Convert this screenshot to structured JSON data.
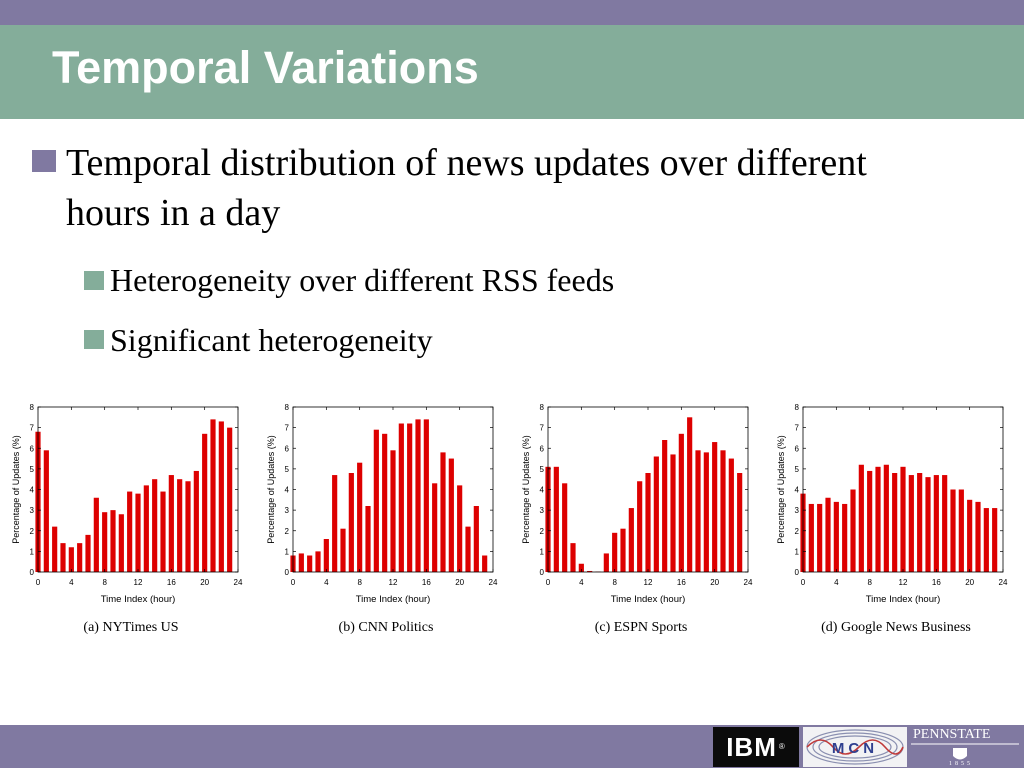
{
  "slide": {
    "title": "Temporal Variations",
    "bullet_main": "Temporal distribution of news updates over different hours in a day",
    "sub_bullets": [
      "Heterogeneity over different RSS feeds",
      "Significant heterogeneity"
    ]
  },
  "colors": {
    "top_band": "#8079a1",
    "title_bar": "#84ad9a",
    "bar_fill": "#dd0000"
  },
  "logos": {
    "ibm": "IBM",
    "mcn": "MCN",
    "pennstate": "PENNSTATE",
    "pennstate_year": "1855"
  },
  "chart_data": [
    {
      "type": "bar",
      "caption": "(a)  NYTimes US",
      "xlabel": "Time Index (hour)",
      "ylabel": "Percentage of Updates (%)",
      "xlim": [
        0,
        24
      ],
      "ylim": [
        0,
        8
      ],
      "xticks": [
        0,
        4,
        8,
        12,
        16,
        20,
        24
      ],
      "yticks": [
        0,
        1,
        2,
        3,
        4,
        5,
        6,
        7,
        8
      ],
      "x": [
        0,
        1,
        2,
        3,
        4,
        5,
        6,
        7,
        8,
        9,
        10,
        11,
        12,
        13,
        14,
        15,
        16,
        17,
        18,
        19,
        20,
        21,
        22,
        23
      ],
      "values": [
        6.8,
        5.9,
        2.2,
        1.4,
        1.2,
        1.4,
        1.8,
        3.6,
        2.9,
        3.0,
        2.8,
        3.9,
        3.8,
        4.2,
        4.5,
        3.9,
        4.7,
        4.5,
        4.4,
        4.9,
        6.7,
        7.4,
        7.3,
        7.0
      ]
    },
    {
      "type": "bar",
      "caption": "(b)  CNN Politics",
      "xlabel": "Time Index (hour)",
      "ylabel": "Percentage of Updates (%)",
      "xlim": [
        0,
        24
      ],
      "ylim": [
        0,
        8
      ],
      "xticks": [
        0,
        4,
        8,
        12,
        16,
        20,
        24
      ],
      "yticks": [
        0,
        1,
        2,
        3,
        4,
        5,
        6,
        7,
        8
      ],
      "x": [
        0,
        1,
        2,
        3,
        4,
        5,
        6,
        7,
        8,
        9,
        10,
        11,
        12,
        13,
        14,
        15,
        16,
        17,
        18,
        19,
        20,
        21,
        22,
        23
      ],
      "values": [
        0.8,
        0.9,
        0.8,
        1.0,
        1.6,
        4.7,
        2.1,
        4.8,
        5.3,
        3.2,
        6.9,
        6.7,
        5.9,
        7.2,
        7.2,
        7.4,
        7.4,
        4.3,
        5.8,
        5.5,
        4.2,
        2.2,
        3.2,
        0.8
      ]
    },
    {
      "type": "bar",
      "caption": "(c)  ESPN Sports",
      "xlabel": "Time Index (hour)",
      "ylabel": "Percentage of Updates (%)",
      "xlim": [
        0,
        24
      ],
      "ylim": [
        0,
        8
      ],
      "xticks": [
        0,
        4,
        8,
        12,
        16,
        20,
        24
      ],
      "yticks": [
        0,
        1,
        2,
        3,
        4,
        5,
        6,
        7,
        8
      ],
      "x": [
        0,
        1,
        2,
        3,
        4,
        5,
        6,
        7,
        8,
        9,
        10,
        11,
        12,
        13,
        14,
        15,
        16,
        17,
        18,
        19,
        20,
        21,
        22,
        23
      ],
      "values": [
        5.1,
        5.1,
        4.3,
        1.4,
        0.4,
        0.05,
        0.02,
        0.9,
        1.9,
        2.1,
        3.1,
        4.4,
        4.8,
        5.6,
        6.4,
        5.7,
        6.7,
        7.5,
        5.9,
        5.8,
        6.3,
        5.9,
        5.5,
        4.8
      ]
    },
    {
      "type": "bar",
      "caption": "(d)  Google News Business",
      "xlabel": "Time Index (hour)",
      "ylabel": "Percentage of Updates (%)",
      "xlim": [
        0,
        24
      ],
      "ylim": [
        0,
        8
      ],
      "xticks": [
        0,
        4,
        8,
        12,
        16,
        20,
        24
      ],
      "yticks": [
        0,
        1,
        2,
        3,
        4,
        5,
        6,
        7,
        8
      ],
      "x": [
        0,
        1,
        2,
        3,
        4,
        5,
        6,
        7,
        8,
        9,
        10,
        11,
        12,
        13,
        14,
        15,
        16,
        17,
        18,
        19,
        20,
        21,
        22,
        23
      ],
      "values": [
        3.8,
        3.3,
        3.3,
        3.6,
        3.4,
        3.3,
        4.0,
        5.2,
        4.9,
        5.1,
        5.2,
        4.8,
        5.1,
        4.7,
        4.8,
        4.6,
        4.7,
        4.7,
        4.0,
        4.0,
        3.5,
        3.4,
        3.1,
        3.1
      ]
    }
  ]
}
